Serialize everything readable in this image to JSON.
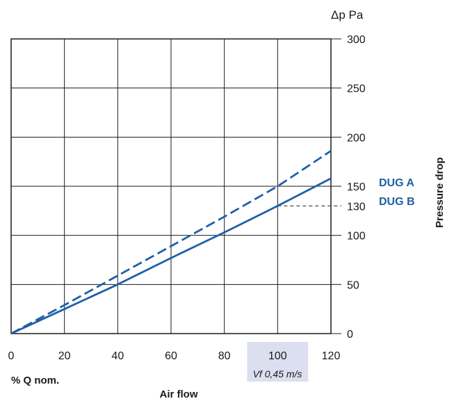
{
  "chart_data": {
    "type": "line",
    "x_axis": {
      "ticks": [
        0,
        20,
        40,
        60,
        80,
        100,
        120
      ],
      "range": [
        0,
        120
      ],
      "label_left": "% Q nom.",
      "label": "Air flow"
    },
    "y_axis": {
      "ticks": [
        0,
        50,
        100,
        150,
        200,
        250,
        300
      ],
      "range": [
        0,
        300
      ],
      "unit": "Δp Pa",
      "label": "Pressure drop",
      "extra_tick": 130
    },
    "highlight": {
      "x_value": 100,
      "note": "Vf 0,45 m/s",
      "color": "#dcdff0"
    },
    "series": [
      {
        "name": "DUG A",
        "style": "dashed",
        "color": "#1f5fa8",
        "x": [
          0,
          20,
          40,
          60,
          80,
          100,
          120
        ],
        "y": [
          0,
          29,
          59,
          89,
          119,
          150,
          186
        ],
        "reference_value": 150
      },
      {
        "name": "DUG B",
        "style": "solid",
        "color": "#1f5fa8",
        "x": [
          0,
          20,
          40,
          60,
          80,
          100,
          120
        ],
        "y": [
          0,
          25,
          50,
          77,
          103,
          130,
          158
        ],
        "reference_value": 130
      }
    ],
    "grid": true
  }
}
